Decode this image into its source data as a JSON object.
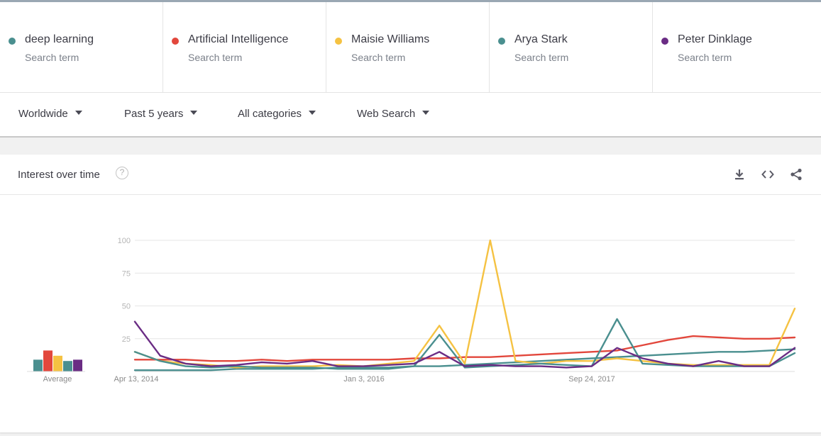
{
  "terms": [
    {
      "name": "deep learning",
      "sub": "Search term",
      "color": "#4a8f8f"
    },
    {
      "name": "Artificial Intelligence",
      "sub": "Search term",
      "color": "#e2473c"
    },
    {
      "name": "Maisie Williams",
      "sub": "Search term",
      "color": "#f5c242"
    },
    {
      "name": "Arya Stark",
      "sub": "Search term",
      "color": "#4a8f8f"
    },
    {
      "name": "Peter Dinklage",
      "sub": "Search term",
      "color": "#6a2c84"
    }
  ],
  "filters": {
    "region": "Worldwide",
    "period": "Past 5 years",
    "category": "All categories",
    "property": "Web Search"
  },
  "card": {
    "title": "Interest over time",
    "help_glyph": "?",
    "icons": [
      "download-icon",
      "embed-icon",
      "share-icon"
    ]
  },
  "chart_data": {
    "type": "line",
    "title": "",
    "xlabel": "",
    "ylabel": "",
    "ylim": [
      0,
      100
    ],
    "yticks": [
      "100",
      "75",
      "50",
      "25"
    ],
    "xtick_labels": [
      "Apr 13, 2014",
      "Jan 3, 2016",
      "Sep 24, 2017"
    ],
    "average_label": "Average",
    "averages": [
      {
        "name": "deep learning",
        "value": 9,
        "color": "#4a8f8f"
      },
      {
        "name": "Artificial Intelligence",
        "value": 16,
        "color": "#e2473c"
      },
      {
        "name": "Maisie Williams",
        "value": 12,
        "color": "#f5c242"
      },
      {
        "name": "Arya Stark",
        "value": 8,
        "color": "#4a8f8f"
      },
      {
        "name": "Peter Dinklage",
        "value": 9,
        "color": "#6a2c84"
      }
    ],
    "x_weeks": [
      0,
      10,
      20,
      30,
      40,
      50,
      60,
      70,
      80,
      90,
      100,
      110,
      120,
      130,
      140,
      150,
      160,
      170,
      180,
      190,
      200,
      210,
      220,
      230,
      240,
      250,
      260
    ],
    "series": [
      {
        "name": "deep learning",
        "color": "#4a8f8f",
        "values": [
          1,
          1,
          1,
          1,
          2,
          2,
          2,
          2,
          3,
          3,
          3,
          4,
          4,
          5,
          6,
          7,
          8,
          9,
          10,
          11,
          12,
          13,
          14,
          15,
          15,
          16,
          17
        ]
      },
      {
        "name": "Artificial Intelligence",
        "color": "#e2473c",
        "values": [
          9,
          9,
          9,
          8,
          8,
          9,
          8,
          9,
          9,
          9,
          9,
          10,
          10,
          11,
          11,
          12,
          13,
          14,
          15,
          16,
          20,
          24,
          27,
          26,
          25,
          25,
          26
        ]
      },
      {
        "name": "Maisie Williams",
        "color": "#f5c242",
        "values": [
          15,
          8,
          6,
          5,
          3,
          4,
          4,
          4,
          5,
          4,
          6,
          8,
          35,
          6,
          100,
          8,
          6,
          8,
          8,
          10,
          8,
          6,
          5,
          5,
          5,
          5,
          48
        ]
      },
      {
        "name": "Arya Stark",
        "color": "#4a8f8f",
        "values": [
          15,
          8,
          4,
          3,
          4,
          3,
          3,
          3,
          2,
          2,
          2,
          4,
          28,
          3,
          4,
          5,
          6,
          5,
          4,
          40,
          6,
          5,
          4,
          4,
          4,
          4,
          14
        ]
      },
      {
        "name": "Peter Dinklage",
        "color": "#6a2c84",
        "values": [
          38,
          12,
          6,
          4,
          5,
          7,
          6,
          8,
          4,
          4,
          5,
          6,
          15,
          4,
          5,
          4,
          4,
          3,
          4,
          18,
          10,
          6,
          4,
          8,
          4,
          4,
          18
        ]
      }
    ]
  }
}
